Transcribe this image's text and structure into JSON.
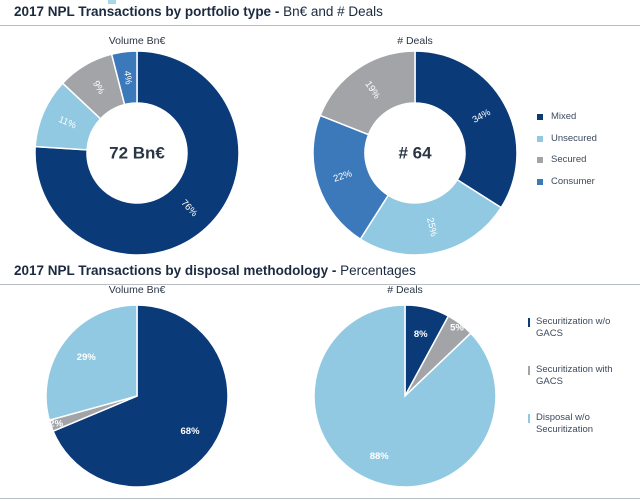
{
  "section1": {
    "title_main": "2017 NPL Transactions  by portfolio type - ",
    "title_sub": "Bn€ and # Deals"
  },
  "section2": {
    "title_main": "2017 NPL Transactions by disposal methodology   - ",
    "title_sub": "Percentages"
  },
  "legend1": [
    {
      "label": "Mixed",
      "color": "#0b3a78"
    },
    {
      "label": "Unsecured",
      "color": "#92c9e2"
    },
    {
      "label": "Secured",
      "color": "#a2a4a8"
    },
    {
      "label": "Consumer",
      "color": "#3c79ba"
    }
  ],
  "legend2": [
    {
      "label": "Securitization w/o GACS",
      "color": "#0b3a78"
    },
    {
      "label": "Securitization with GACS",
      "color": "#a2a4a8"
    },
    {
      "label": "Disposal w/o Securitization",
      "color": "#92c9e2"
    }
  ],
  "chart_data": [
    {
      "type": "pie",
      "style": "donut",
      "title": "Volume Bn€",
      "center_label": "72 Bn€",
      "slices": [
        {
          "label": "Mixed",
          "value": 76,
          "text": "76%",
          "color": "#0b3a78"
        },
        {
          "label": "Unsecured",
          "value": 11,
          "text": "11%",
          "color": "#92c9e2"
        },
        {
          "label": "Secured",
          "value": 9,
          "text": "9%",
          "color": "#a2a4a8"
        },
        {
          "label": "Consumer",
          "value": 4,
          "text": "4%",
          "color": "#3c79ba"
        }
      ]
    },
    {
      "type": "pie",
      "style": "donut",
      "title": "# Deals",
      "center_label": "# 64",
      "slices": [
        {
          "label": "Mixed",
          "value": 34,
          "text": "34%",
          "color": "#0b3a78"
        },
        {
          "label": "Unsecured",
          "value": 25,
          "text": "25%",
          "color": "#92c9e2"
        },
        {
          "label": "Consumer",
          "value": 22,
          "text": "22%",
          "color": "#3c79ba"
        },
        {
          "label": "Secured",
          "value": 19,
          "text": "19%",
          "color": "#a2a4a8"
        }
      ]
    },
    {
      "type": "pie",
      "title": "Volume Bn€",
      "slices": [
        {
          "label": "Securitization w/o GACS",
          "value": 68,
          "text": "68%",
          "color": "#0b3a78"
        },
        {
          "label": "Securitization with GACS",
          "value": 2,
          "text": "2%",
          "color": "#a2a4a8"
        },
        {
          "label": "Disposal w/o Securitization",
          "value": 29,
          "text": "29%",
          "color": "#92c9e2"
        }
      ]
    },
    {
      "type": "pie",
      "title": "# Deals",
      "slices": [
        {
          "label": "Securitization w/o GACS",
          "value": 8,
          "text": "8%",
          "color": "#0b3a78"
        },
        {
          "label": "Securitization with GACS",
          "value": 5,
          "text": "5%",
          "color": "#a2a4a8"
        },
        {
          "label": "Disposal w/o Securitization",
          "value": 88,
          "text": "88%",
          "color": "#92c9e2"
        }
      ]
    }
  ]
}
